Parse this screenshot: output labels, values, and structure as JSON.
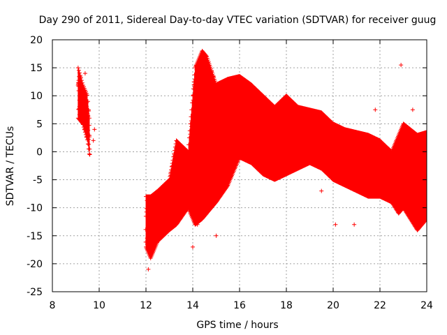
{
  "chart_data": {
    "type": "scatter",
    "title": "Day 290 of 2011, Sidereal Day-to-day VTEC variation (SDTVAR) for receiver guug",
    "xlabel": "GPS time / hours",
    "ylabel": "SDTVAR / TECUs",
    "xlim": [
      8,
      24
    ],
    "ylim": [
      -25,
      20
    ],
    "x_ticks": [
      "8",
      "10",
      "12",
      "14",
      "16",
      "18",
      "20",
      "22",
      "24"
    ],
    "y_ticks": [
      "20",
      "15",
      "10",
      "5",
      "0",
      "-5",
      "-10",
      "-15",
      "-20",
      "-25"
    ],
    "grid": true,
    "legend": "none",
    "series": [
      {
        "name": "SDTVAR",
        "color": "#ff0000",
        "marker": "plus",
        "envelope": {
          "x": [
            9.1,
            9.3,
            9.5,
            9.6
          ],
          "upper": [
            15,
            12,
            10,
            5
          ],
          "lower": [
            6,
            5,
            2,
            -1
          ]
        },
        "envelope2": {
          "x": [
            12.0,
            12.2,
            12.5,
            13.0,
            13.3,
            13.8,
            14.1,
            14.4,
            14.6,
            15.0,
            15.5,
            16.0,
            16.5,
            17.0,
            17.5,
            18.0,
            18.5,
            19.0,
            19.5,
            20.0,
            20.5,
            21.0,
            21.5,
            22.0,
            22.5,
            22.8,
            23.0,
            23.3,
            23.6,
            24.0
          ],
          "upper": [
            -8,
            -8,
            -7,
            -5,
            2,
            0,
            15,
            18,
            17,
            12,
            13,
            13.5,
            12,
            10,
            8,
            10,
            8,
            7.5,
            7,
            5,
            4,
            3.5,
            3,
            2,
            0,
            3,
            5,
            4,
            3,
            3.5
          ],
          "lower": [
            -17,
            -19,
            -16,
            -14,
            -13,
            -10,
            -13,
            -12,
            -11,
            -9,
            -6,
            -1,
            -2,
            -4,
            -5,
            -4,
            -3,
            -2,
            -3,
            -5,
            -6,
            -7,
            -8,
            -8,
            -9,
            -11,
            -10,
            -12,
            -14,
            -12
          ]
        },
        "outliers": [
          {
            "x": 9.4,
            "y": 14
          },
          {
            "x": 9.8,
            "y": 4
          },
          {
            "x": 9.75,
            "y": 2
          },
          {
            "x": 9.6,
            "y": -0.5
          },
          {
            "x": 12.1,
            "y": -21
          },
          {
            "x": 12.2,
            "y": -8
          },
          {
            "x": 13.0,
            "y": -13
          },
          {
            "x": 13.2,
            "y": -12
          },
          {
            "x": 14.0,
            "y": -17
          },
          {
            "x": 14.2,
            "y": -13
          },
          {
            "x": 15.0,
            "y": -15
          },
          {
            "x": 14.8,
            "y": 12
          },
          {
            "x": 19.5,
            "y": -7
          },
          {
            "x": 19.7,
            "y": 6
          },
          {
            "x": 20.1,
            "y": -13
          },
          {
            "x": 20.9,
            "y": -13
          },
          {
            "x": 21.8,
            "y": 7.5
          },
          {
            "x": 22.9,
            "y": 15.5
          },
          {
            "x": 23.4,
            "y": 7.5
          },
          {
            "x": 23.8,
            "y": -7
          }
        ]
      }
    ]
  }
}
